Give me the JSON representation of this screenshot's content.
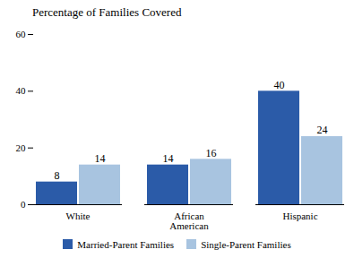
{
  "chart_data": {
    "type": "bar",
    "title": "Percentage of Families Covered",
    "categories": [
      "White",
      "African\nAmerican",
      "Hispanic"
    ],
    "series": [
      {
        "name": "Married-Parent Families",
        "color": "#2B5BA8",
        "values": [
          8,
          14,
          40
        ]
      },
      {
        "name": "Single-Parent Families",
        "color": "#A8C4E0",
        "values": [
          14,
          16,
          24
        ]
      }
    ],
    "ylim": [
      0,
      60
    ],
    "yticks": [
      0,
      20,
      40,
      60
    ],
    "data_labels": true,
    "legend": "bottom",
    "grid": false
  }
}
